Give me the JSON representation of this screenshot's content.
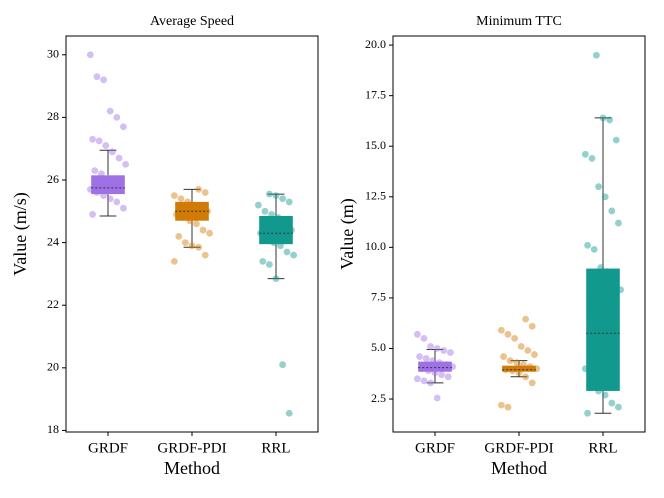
{
  "chart_data": [
    {
      "type": "box",
      "title": "Average Speed",
      "xlabel": "Method",
      "ylabel": "Value (m/s)",
      "categories": [
        "GRDF",
        "GRDF-PDI",
        "RRL"
      ],
      "colors": [
        "#9e72e6",
        "#d17a05",
        "#11998e"
      ],
      "boxes": [
        {
          "whislo": 24.85,
          "q1": 25.55,
          "med": 25.75,
          "q3": 26.15,
          "whishi": 26.95
        },
        {
          "whislo": 23.85,
          "q1": 24.7,
          "med": 25.0,
          "q3": 25.3,
          "whishi": 25.7
        },
        {
          "whislo": 22.85,
          "q1": 23.95,
          "med": 24.3,
          "q3": 24.85,
          "whishi": 25.55
        }
      ],
      "points": [
        [
          30.0,
          29.3,
          29.2,
          28.2,
          28.0,
          27.7,
          27.3,
          27.25,
          27.1,
          26.9,
          26.7,
          26.5,
          26.3,
          26.2,
          26.0,
          25.9,
          25.8,
          25.7,
          25.6,
          25.5,
          25.4,
          25.3,
          25.1,
          24.9
        ],
        [
          25.7,
          25.6,
          25.5,
          25.4,
          25.3,
          25.2,
          25.1,
          25.0,
          24.9,
          24.8,
          24.7,
          24.6,
          24.4,
          24.3,
          24.2,
          24.0,
          23.9,
          23.85,
          23.6,
          23.4
        ],
        [
          25.55,
          25.5,
          25.4,
          25.3,
          25.2,
          25.0,
          24.9,
          24.8,
          24.6,
          24.4,
          24.3,
          24.1,
          24.0,
          23.9,
          23.7,
          23.6,
          23.4,
          23.3,
          22.85,
          20.1,
          18.55
        ]
      ],
      "ylim": [
        17.95,
        30.6
      ],
      "yticks": [
        18,
        20,
        22,
        24,
        26,
        28,
        30
      ]
    },
    {
      "type": "box",
      "title": "Minimum TTC",
      "xlabel": "Method",
      "ylabel": "Value (m)",
      "categories": [
        "GRDF",
        "GRDF-PDI",
        "RRL"
      ],
      "colors": [
        "#9e72e6",
        "#d17a05",
        "#11998e"
      ],
      "boxes": [
        {
          "whislo": 3.3,
          "q1": 3.85,
          "med": 4.05,
          "q3": 4.35,
          "whishi": 4.95
        },
        {
          "whislo": 3.6,
          "q1": 3.85,
          "med": 3.95,
          "q3": 4.15,
          "whishi": 4.4
        },
        {
          "whislo": 1.8,
          "q1": 2.9,
          "med": 5.75,
          "q3": 8.95,
          "whishi": 16.4
        }
      ],
      "points": [
        [
          5.7,
          5.5,
          5.1,
          5.0,
          4.9,
          4.8,
          4.6,
          4.5,
          4.4,
          4.3,
          4.2,
          4.1,
          4.0,
          3.9,
          3.8,
          3.7,
          3.6,
          3.5,
          3.4,
          3.3,
          2.55
        ],
        [
          6.45,
          6.1,
          5.9,
          5.7,
          5.5,
          5.1,
          4.9,
          4.7,
          4.6,
          4.4,
          4.3,
          4.2,
          4.1,
          4.0,
          3.95,
          3.9,
          3.8,
          3.6,
          3.3,
          2.2,
          2.1
        ],
        [
          19.5,
          16.4,
          16.3,
          15.3,
          14.6,
          14.4,
          13.0,
          12.5,
          11.8,
          11.2,
          10.1,
          9.9,
          9.0,
          8.8,
          8.4,
          7.9,
          7.2,
          6.5,
          5.9,
          5.3,
          4.7,
          4.0,
          3.4,
          2.9,
          2.7,
          2.3,
          2.1,
          1.8
        ]
      ],
      "ylim": [
        0.87,
        20.45
      ],
      "yticks": [
        2.5,
        {
          "value": 5,
          "label": "5.0"
        },
        7.5,
        {
          "value": 10,
          "label": "10.0"
        },
        12.5,
        {
          "value": 15,
          "label": "15.0"
        },
        17.5,
        {
          "value": 20,
          "label": "20.0"
        }
      ]
    }
  ]
}
